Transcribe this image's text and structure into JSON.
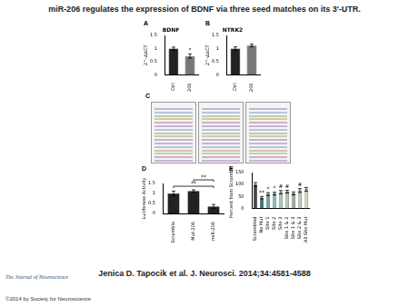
{
  "title": "miR-206 regulates the expression of BDNF via three seed matches on its 3'-UTR.",
  "citation": "Jenica D. Tapocik et al. J. Neurosci. 2014;34:4581-4588",
  "journal": "The Journal of Neuroscience",
  "copyright": "©2014 by Society for Neuroscience",
  "sequence_panel": {
    "panel": "C"
  },
  "chart_data": [
    {
      "panel": "A",
      "type": "bar",
      "title": "BDNF",
      "ylabel": "2^-ΔΔCT",
      "categories": [
        "Ctrl",
        "206"
      ],
      "values": [
        1.0,
        0.72
      ],
      "errors": [
        0.06,
        0.08
      ],
      "colors": [
        "#222222",
        "#777777"
      ],
      "marks": [
        null,
        "*"
      ],
      "ylim": [
        0,
        1.5
      ],
      "yticks": [
        0,
        0.5,
        1,
        1.5
      ],
      "grid": false
    },
    {
      "panel": "B",
      "type": "bar",
      "title": "NTRK2",
      "ylabel": "2^-ΔΔCT",
      "categories": [
        "Ctrl",
        "206"
      ],
      "values": [
        1.0,
        1.12
      ],
      "errors": [
        0.07,
        0.05
      ],
      "colors": [
        "#222222",
        "#777777"
      ],
      "ylim": [
        0,
        1.5
      ],
      "yticks": [
        0,
        0.5,
        1,
        1.5
      ],
      "grid": false
    },
    {
      "panel": "D",
      "type": "bar",
      "ylabel": "Luciferase Activity",
      "categories": [
        "Scramble",
        "Mut-206",
        "miR-206"
      ],
      "values": [
        1.0,
        1.12,
        0.35
      ],
      "errors": [
        0.12,
        0.06,
        0.1
      ],
      "colors": [
        "#222222",
        "#222222",
        "#222222"
      ],
      "comparisons": [
        {
          "from": 0,
          "to": 2,
          "label": "**"
        },
        {
          "from": 1,
          "to": 2,
          "label": "**"
        }
      ],
      "ylim": [
        0,
        1.5
      ],
      "yticks": [
        0,
        0.5,
        1,
        1.5
      ],
      "grid": false
    },
    {
      "panel": "E",
      "type": "bar",
      "ylabel": "Percent from Scrambled",
      "categories": [
        "Scrambled",
        "No Mut",
        "Site 1",
        "Site 2",
        "Site 3",
        "Site 1 & 2",
        "Site 1 & 3",
        "Site 2 & 3",
        "All Site Mut"
      ],
      "values": [
        100,
        45,
        60,
        62,
        68,
        70,
        63,
        75,
        80
      ],
      "errors": [
        8,
        5,
        6,
        6,
        7,
        6,
        6,
        8,
        8
      ],
      "colors": [
        "#444444",
        "#3a6f7a",
        "#6fa3a8",
        "#8fb9ba",
        "#a5c6c4",
        "#b8c9b0",
        "#9fb39d",
        "#c4c9c0",
        "#d0d8c8"
      ],
      "marks": [
        null,
        "**",
        "*",
        "*",
        "#",
        "#",
        null,
        "#",
        null
      ],
      "ylim": [
        0,
        150
      ],
      "yticks": [
        0,
        50,
        100,
        150
      ],
      "grid": false
    }
  ]
}
